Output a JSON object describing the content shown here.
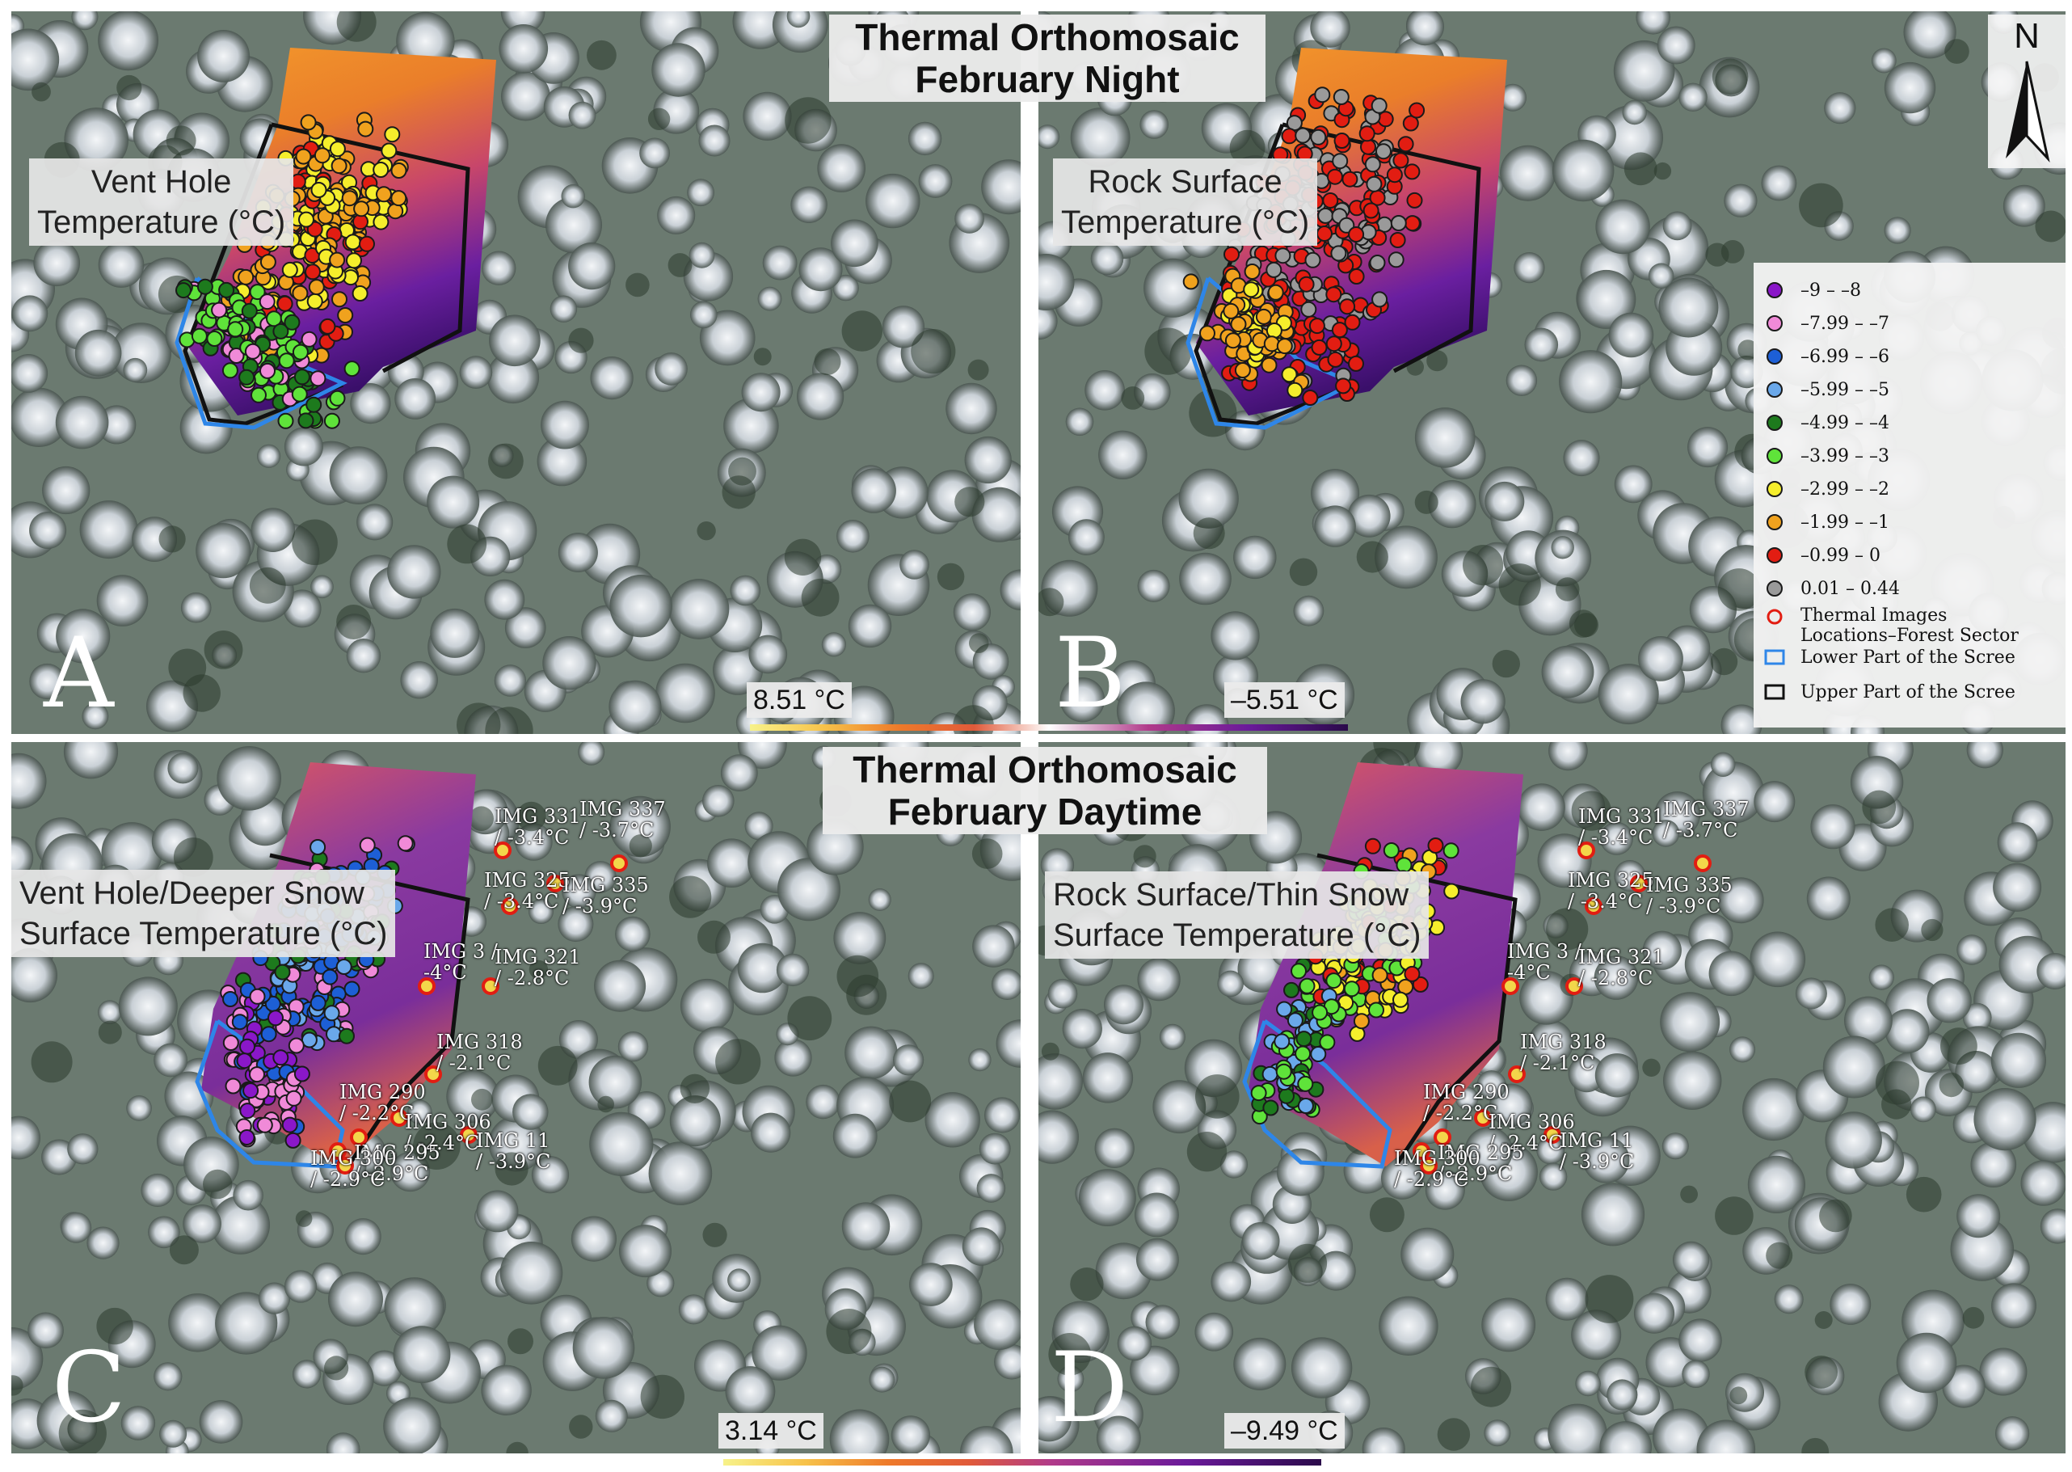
{
  "figure": {
    "top_title": [
      "Thermal Orthomosaic",
      "February Night"
    ],
    "bottom_title": [
      "Thermal Orthomosaic",
      "February Daytime"
    ],
    "north_label": "N"
  },
  "panels": {
    "A": {
      "letter": "A",
      "label": [
        "Vent Hole",
        "Temperature (°C)"
      ]
    },
    "B": {
      "letter": "B",
      "label": [
        "Rock Surface",
        "Temperature (°C)"
      ]
    },
    "C": {
      "letter": "C",
      "label": [
        "Vent Hole/Deeper Snow",
        "Surface Temperature (°C)"
      ]
    },
    "D": {
      "letter": "D",
      "label": [
        "Rock Surface/Thin Snow",
        "Surface Temperature (°C)"
      ]
    }
  },
  "colorbars": {
    "night": {
      "max_label": "8.51 °C",
      "min_label": "–5.51 °C"
    },
    "day": {
      "max_label": "3.14 °C",
      "min_label": "–9.49 °C"
    }
  },
  "legend": {
    "items": [
      {
        "label": "–9 – –8",
        "color": "#8a17c9",
        "symbol": "dot"
      },
      {
        "label": "–7.99 – –7",
        "color": "#f08ad8",
        "symbol": "dot"
      },
      {
        "label": "–6.99 – –6",
        "color": "#1d5fd6",
        "symbol": "dot"
      },
      {
        "label": "–5.99 – –5",
        "color": "#6aa8ea",
        "symbol": "dot"
      },
      {
        "label": "–4.99 – –4",
        "color": "#1d7a1d",
        "symbol": "dot"
      },
      {
        "label": "–3.99 – –3",
        "color": "#5fe33a",
        "symbol": "dot"
      },
      {
        "label": "–2.99 – –2",
        "color": "#f5ee2c",
        "symbol": "dot"
      },
      {
        "label": "–1.99 – –1",
        "color": "#f0a21e",
        "symbol": "dot"
      },
      {
        "label": "–0.99 – 0",
        "color": "#e21d12",
        "symbol": "dot"
      },
      {
        "label": "0.01 – 0.44",
        "color": "#9a9a9a",
        "symbol": "dot"
      },
      {
        "label": "Thermal Images",
        "label2": "Locations–Forest Sector",
        "color": "#e21d12",
        "symbol": "ring"
      },
      {
        "label": "Lower Part of the Scree",
        "color": "#2e86e8",
        "symbol": "square"
      },
      {
        "label": "Upper Part of the Scree",
        "color": "#111111",
        "symbol": "square"
      }
    ]
  },
  "thermal_images": [
    {
      "name": "IMG 331",
      "value": "/ -3.4°C"
    },
    {
      "name": "IMG 337",
      "value": "/ -3.7°C"
    },
    {
      "name": "IMG 325",
      "value": "/ -3.4°C"
    },
    {
      "name": "IMG 335",
      "value": "/ -3.9°C"
    },
    {
      "name": "IMG 3 /",
      "value": "-4°C"
    },
    {
      "name": "IMG 321",
      "value": "/ -2.8°C"
    },
    {
      "name": "IMG 318",
      "value": "/ -2.1°C"
    },
    {
      "name": "IMG 290",
      "value": "/ -2.2°C"
    },
    {
      "name": "IMG 306",
      "value": "/ -2.4°C"
    },
    {
      "name": "IMG 11",
      "value": "/ -3.9°C"
    },
    {
      "name": "IMG 295",
      "value": "/ -2.9°C"
    },
    {
      "name": "IMG 300",
      "value": "/ -2.9°C"
    }
  ],
  "colors": {
    "lower_scree": "#2e86e8",
    "upper_scree": "#111111",
    "image_location": "#e21d12"
  }
}
